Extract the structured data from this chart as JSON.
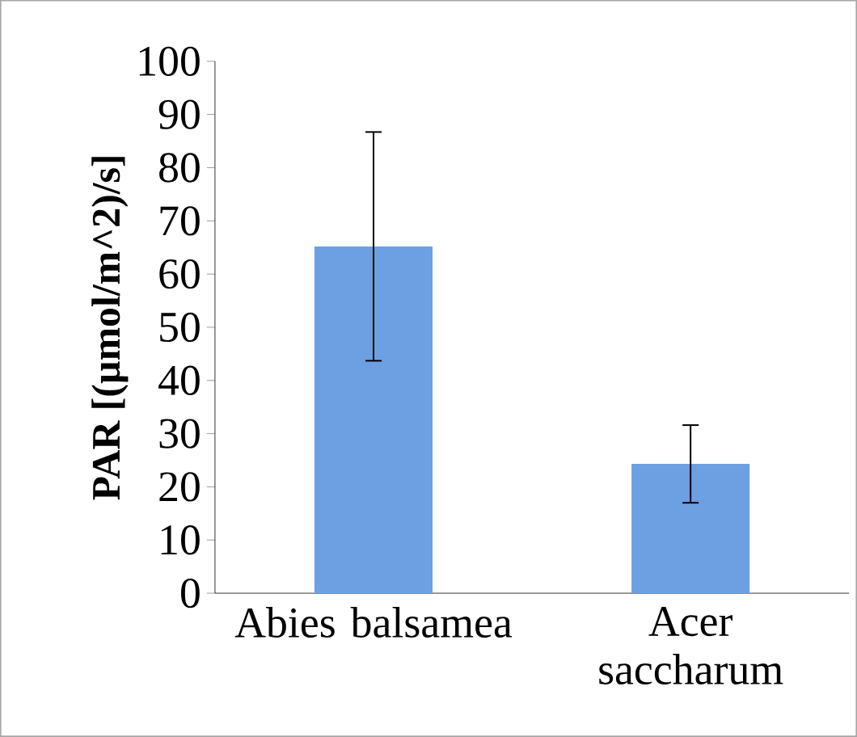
{
  "chart_data": {
    "type": "bar",
    "categories": [
      "Abies balsamea",
      "Acer saccharum"
    ],
    "values": [
      65.2,
      24.3
    ],
    "errors": [
      21.5,
      7.3
    ],
    "color": "#6d9fe3",
    "ylabel": "PAR [(µmol/m^2)/s]",
    "ylim": [
      0,
      100
    ],
    "yticks": [
      0,
      10,
      20,
      30,
      40,
      50,
      60,
      70,
      80,
      90,
      100
    ],
    "grid": false
  }
}
